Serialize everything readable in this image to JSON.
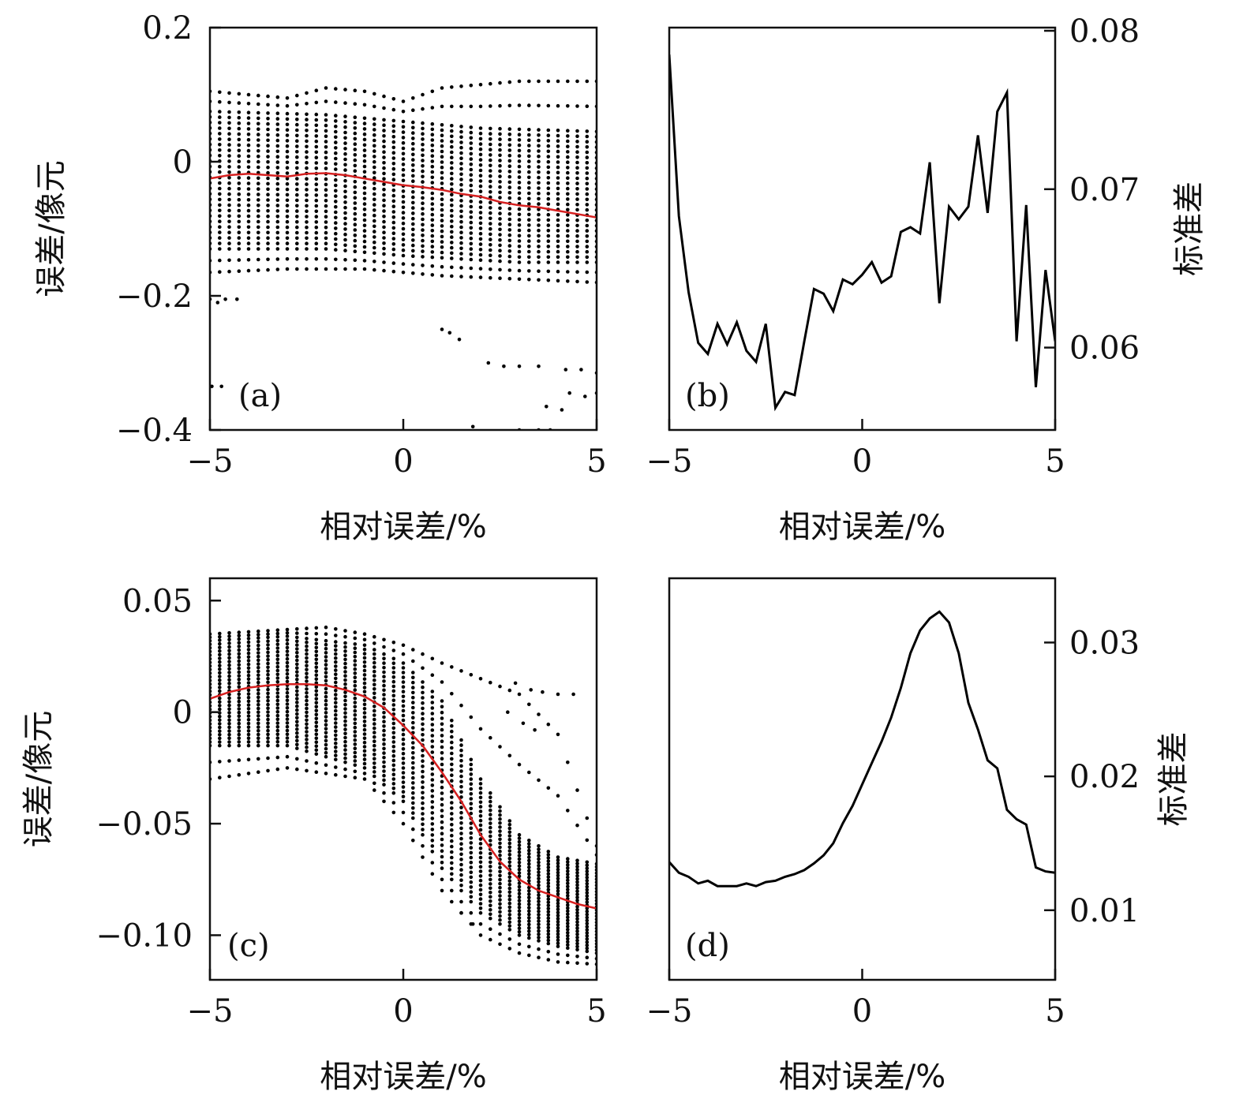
{
  "chart_data": [
    {
      "panel": "(a)",
      "type": "scatter",
      "xlabel": "相对误差/%",
      "ylabel": "误差/像元",
      "xlim": [
        -5,
        5
      ],
      "ylim": [
        -0.4,
        0.2
      ],
      "xticks": [
        -5,
        0,
        5
      ],
      "xtick_labels": [
        "−5",
        "0",
        "5"
      ],
      "yticks": [
        -0.4,
        -0.2,
        0,
        0.2
      ],
      "ytick_labels": [
        "−0.4",
        "−0.2",
        "0",
        "0.2"
      ],
      "scatter_color": "#000000",
      "mean_color": "#d62020",
      "scatter_band": {
        "x_start": -5,
        "x_end": 5,
        "x_step": 0.25,
        "points_per_column": 26,
        "upper": [
          [
            -5,
            0.105
          ],
          [
            -4,
            0.1
          ],
          [
            -3,
            0.095
          ],
          [
            -2,
            0.11
          ],
          [
            -1,
            0.105
          ],
          [
            0,
            0.09
          ],
          [
            1,
            0.11
          ],
          [
            2,
            0.115
          ],
          [
            3,
            0.12
          ],
          [
            4,
            0.12
          ],
          [
            5,
            0.12
          ]
        ],
        "core_top": [
          [
            -5,
            0.075
          ],
          [
            -2,
            0.07
          ],
          [
            0,
            0.06
          ],
          [
            2,
            0.05
          ],
          [
            5,
            0.045
          ]
        ],
        "core_bottom": [
          [
            -5,
            -0.13
          ],
          [
            -2,
            -0.13
          ],
          [
            0,
            -0.14
          ],
          [
            3,
            -0.15
          ],
          [
            5,
            -0.15
          ]
        ],
        "lower": [
          [
            -5,
            -0.165
          ],
          [
            -3,
            -0.16
          ],
          [
            -1,
            -0.16
          ],
          [
            1,
            -0.17
          ],
          [
            3,
            -0.175
          ],
          [
            5,
            -0.18
          ]
        ]
      },
      "outliers": [
        [
          -5,
          -0.205
        ],
        [
          -4.8,
          -0.21
        ],
        [
          -4.6,
          -0.205
        ],
        [
          -4.3,
          -0.205
        ],
        [
          -4.95,
          -0.335
        ],
        [
          -4.7,
          -0.335
        ],
        [
          1,
          -0.25
        ],
        [
          1.2,
          -0.255
        ],
        [
          1.45,
          -0.265
        ],
        [
          2.2,
          -0.3
        ],
        [
          2.6,
          -0.305
        ],
        [
          3.0,
          -0.305
        ],
        [
          3.5,
          -0.305
        ],
        [
          4.2,
          -0.31
        ],
        [
          4.6,
          -0.31
        ],
        [
          5,
          -0.315
        ],
        [
          4.3,
          -0.345
        ],
        [
          4.7,
          -0.35
        ],
        [
          5,
          -0.345
        ],
        [
          3.7,
          -0.365
        ],
        [
          4.1,
          -0.37
        ],
        [
          1.8,
          -0.395
        ],
        [
          3.0,
          -0.4
        ],
        [
          3.5,
          -0.4
        ],
        [
          3.8,
          -0.4
        ]
      ],
      "mean": {
        "x": [
          -5,
          -4.5,
          -4,
          -3.5,
          -3,
          -2.5,
          -2,
          -1.5,
          -1,
          -0.5,
          0,
          0.5,
          1,
          1.5,
          2,
          2.5,
          3,
          3.5,
          4,
          4.5,
          5
        ],
        "y": [
          -0.025,
          -0.02,
          -0.018,
          -0.02,
          -0.022,
          -0.018,
          -0.017,
          -0.02,
          -0.025,
          -0.03,
          -0.035,
          -0.038,
          -0.042,
          -0.048,
          -0.052,
          -0.06,
          -0.065,
          -0.068,
          -0.073,
          -0.078,
          -0.083
        ]
      }
    },
    {
      "panel": "(b)",
      "type": "line",
      "xlabel": "相对误差/%",
      "ylabel": "标准差",
      "xlim": [
        -5,
        5
      ],
      "ylim": [
        0.0548,
        0.0802
      ],
      "xticks": [
        -5,
        0,
        5
      ],
      "xtick_labels": [
        "−5",
        "0",
        "5"
      ],
      "yticks": [
        0.06,
        0.07,
        0.08
      ],
      "ytick_labels": [
        "0.06",
        "0.07",
        "0.08"
      ],
      "line_color": "#000000",
      "x": [
        -5,
        -4.75,
        -4.5,
        -4.25,
        -4,
        -3.75,
        -3.5,
        -3.25,
        -3,
        -2.75,
        -2.5,
        -2.25,
        -2,
        -1.75,
        -1.5,
        -1.25,
        -1,
        -0.75,
        -0.5,
        -0.25,
        0,
        0.25,
        0.5,
        0.75,
        1,
        1.25,
        1.5,
        1.75,
        2,
        2.25,
        2.5,
        2.75,
        3,
        3.25,
        3.5,
        3.75,
        4,
        4.25,
        4.5,
        4.75,
        5
      ],
      "y": [
        0.0785,
        0.0683,
        0.0635,
        0.0603,
        0.0596,
        0.0615,
        0.0602,
        0.0616,
        0.0598,
        0.0591,
        0.0615,
        0.0562,
        0.0572,
        0.057,
        0.0604,
        0.0637,
        0.0634,
        0.0623,
        0.0643,
        0.064,
        0.0646,
        0.0654,
        0.0641,
        0.0645,
        0.0673,
        0.0676,
        0.0672,
        0.0717,
        0.0628,
        0.0689,
        0.0681,
        0.0689,
        0.0734,
        0.0685,
        0.0749,
        0.0761,
        0.0604,
        0.069,
        0.0575,
        0.0649,
        0.0604
      ]
    },
    {
      "panel": "(c)",
      "type": "scatter",
      "xlabel": "相对误差/%",
      "ylabel": "误差/像元",
      "xlim": [
        -5,
        5
      ],
      "ylim": [
        -0.12,
        0.06
      ],
      "xticks": [
        -5,
        0,
        5
      ],
      "xtick_labels": [
        "−5",
        "0",
        "5"
      ],
      "yticks": [
        -0.1,
        -0.05,
        0,
        0.05
      ],
      "ytick_labels": [
        "−0.10",
        "−0.05",
        "0",
        "0.05"
      ],
      "scatter_color": "#000000",
      "mean_color": "#d62020",
      "scatter_band": {
        "x_start": -5,
        "x_end": 5,
        "x_step": 0.25,
        "points_per_column": 30,
        "upper": [
          [
            -5,
            0.035
          ],
          [
            -3,
            0.037
          ],
          [
            -2,
            0.038
          ],
          [
            -1,
            0.035
          ],
          [
            0,
            0.03
          ],
          [
            1,
            0.022
          ],
          [
            2,
            0.015
          ],
          [
            3,
            0.008
          ],
          [
            4,
            -0.01
          ],
          [
            5,
            -0.06
          ]
        ],
        "core_top": [
          [
            -5,
            0.032
          ],
          [
            -3,
            0.034
          ],
          [
            -1,
            0.03
          ],
          [
            0,
            0.022
          ],
          [
            1,
            0.005
          ],
          [
            2,
            -0.03
          ],
          [
            3,
            -0.055
          ],
          [
            4,
            -0.065
          ],
          [
            5,
            -0.068
          ]
        ],
        "core_bottom": [
          [
            -5,
            -0.015
          ],
          [
            -3,
            -0.015
          ],
          [
            -1,
            -0.025
          ],
          [
            0,
            -0.04
          ],
          [
            1,
            -0.07
          ],
          [
            2,
            -0.09
          ],
          [
            3,
            -0.1
          ],
          [
            4,
            -0.105
          ],
          [
            5,
            -0.108
          ]
        ],
        "lower": [
          [
            -5,
            -0.03
          ],
          [
            -3,
            -0.025
          ],
          [
            -1,
            -0.03
          ],
          [
            0,
            -0.05
          ],
          [
            1,
            -0.08
          ],
          [
            2,
            -0.1
          ],
          [
            3,
            -0.108
          ],
          [
            4,
            -0.112
          ],
          [
            5,
            -0.113
          ]
        ]
      },
      "outliers": [
        [
          2.9,
          0.013
        ],
        [
          3.3,
          0.01
        ],
        [
          3.6,
          0.009
        ],
        [
          4.0,
          0.008
        ],
        [
          4.4,
          0.008
        ],
        [
          2.7,
          0.0
        ],
        [
          3.1,
          -0.005
        ],
        [
          3.4,
          -0.008
        ],
        [
          1.5,
          -0.09
        ],
        [
          1.8,
          -0.095
        ]
      ],
      "mean": {
        "x": [
          -5,
          -4.5,
          -4,
          -3.5,
          -3,
          -2.5,
          -2,
          -1.5,
          -1,
          -0.5,
          0,
          0.5,
          1,
          1.5,
          2,
          2.5,
          3,
          3.5,
          4,
          4.5,
          5
        ],
        "y": [
          0.006,
          0.009,
          0.011,
          0.012,
          0.0125,
          0.0125,
          0.012,
          0.01,
          0.007,
          0.002,
          -0.006,
          -0.015,
          -0.027,
          -0.04,
          -0.055,
          -0.067,
          -0.075,
          -0.08,
          -0.083,
          -0.086,
          -0.088
        ]
      }
    },
    {
      "panel": "(d)",
      "type": "line",
      "xlabel": "相对误差/%",
      "ylabel": "标准差",
      "xlim": [
        -5,
        5
      ],
      "ylim": [
        0.0048,
        0.0348
      ],
      "xticks": [
        -5,
        0,
        5
      ],
      "xtick_labels": [
        "−5",
        "0",
        "5"
      ],
      "yticks": [
        0.01,
        0.02,
        0.03
      ],
      "ytick_labels": [
        "0.01",
        "0.02",
        "0.03"
      ],
      "line_color": "#000000",
      "x": [
        -5,
        -4.75,
        -4.5,
        -4.25,
        -4,
        -3.75,
        -3.5,
        -3.25,
        -3,
        -2.75,
        -2.5,
        -2.25,
        -2,
        -1.75,
        -1.5,
        -1.25,
        -1,
        -0.75,
        -0.5,
        -0.25,
        0,
        0.25,
        0.5,
        0.75,
        1,
        1.25,
        1.5,
        1.75,
        2,
        2.25,
        2.5,
        2.75,
        3,
        3.25,
        3.5,
        3.75,
        4,
        4.25,
        4.5,
        4.75,
        5
      ],
      "y": [
        0.0136,
        0.0128,
        0.0125,
        0.012,
        0.0122,
        0.0118,
        0.0118,
        0.0118,
        0.012,
        0.0118,
        0.0121,
        0.0122,
        0.0125,
        0.0127,
        0.013,
        0.0135,
        0.0141,
        0.015,
        0.0165,
        0.0178,
        0.0194,
        0.021,
        0.0226,
        0.0244,
        0.0266,
        0.0292,
        0.0309,
        0.0318,
        0.0323,
        0.0315,
        0.0292,
        0.0255,
        0.0235,
        0.0212,
        0.0206,
        0.0175,
        0.0168,
        0.0164,
        0.0132,
        0.0129,
        0.0128
      ]
    }
  ]
}
